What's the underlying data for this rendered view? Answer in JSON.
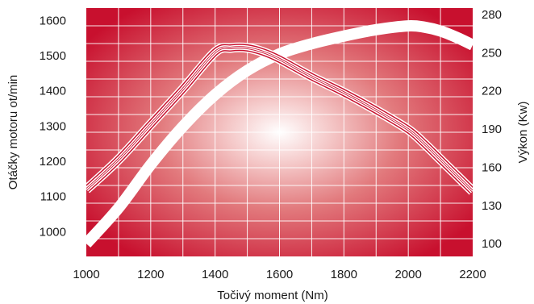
{
  "chart_data": {
    "type": "line",
    "x_axis": {
      "label": "Točivý moment (Nm)",
      "ticks": [
        "1000",
        "1200",
        "1400",
        "1600",
        "1800",
        "2000",
        "2200"
      ],
      "lim": [
        1000,
        2200
      ]
    },
    "y_left": {
      "label": "Otáčky motoru ot/min",
      "ticks": [
        "1000",
        "1100",
        "1200",
        "1300",
        "1400",
        "1500",
        "1600"
      ],
      "lim": [
        930,
        1635
      ]
    },
    "y_right": {
      "label": "Výkon (Kw)",
      "ticks": [
        "100",
        "130",
        "160",
        "190",
        "220",
        "250",
        "280"
      ],
      "lim": [
        90,
        285
      ]
    },
    "grid": true,
    "colors": {
      "background_center": "#ffffff",
      "background_edge": "#c8102e",
      "grid": "#ffffff",
      "curve": "#ffffff"
    },
    "series": [
      {
        "style": "thick",
        "axis": "right",
        "x": [
          1000,
          1100,
          1200,
          1300,
          1400,
          1500,
          1600,
          1700,
          1800,
          1900,
          2000,
          2050,
          2100,
          2150,
          2200
        ],
        "y": [
          100,
          128,
          162,
          192,
          217,
          236,
          249,
          257,
          263,
          268,
          271,
          270,
          267,
          262,
          256
        ]
      },
      {
        "style": "triple-thin",
        "axis": "left",
        "x": [
          1000,
          1100,
          1200,
          1300,
          1400,
          1450,
          1500,
          1550,
          1600,
          1700,
          1800,
          1900,
          2000,
          2050,
          2100,
          2150,
          2200
        ],
        "y": [
          1120,
          1205,
          1305,
          1405,
          1510,
          1522,
          1522,
          1510,
          1490,
          1440,
          1395,
          1345,
          1290,
          1250,
          1205,
          1160,
          1115
        ]
      }
    ]
  }
}
